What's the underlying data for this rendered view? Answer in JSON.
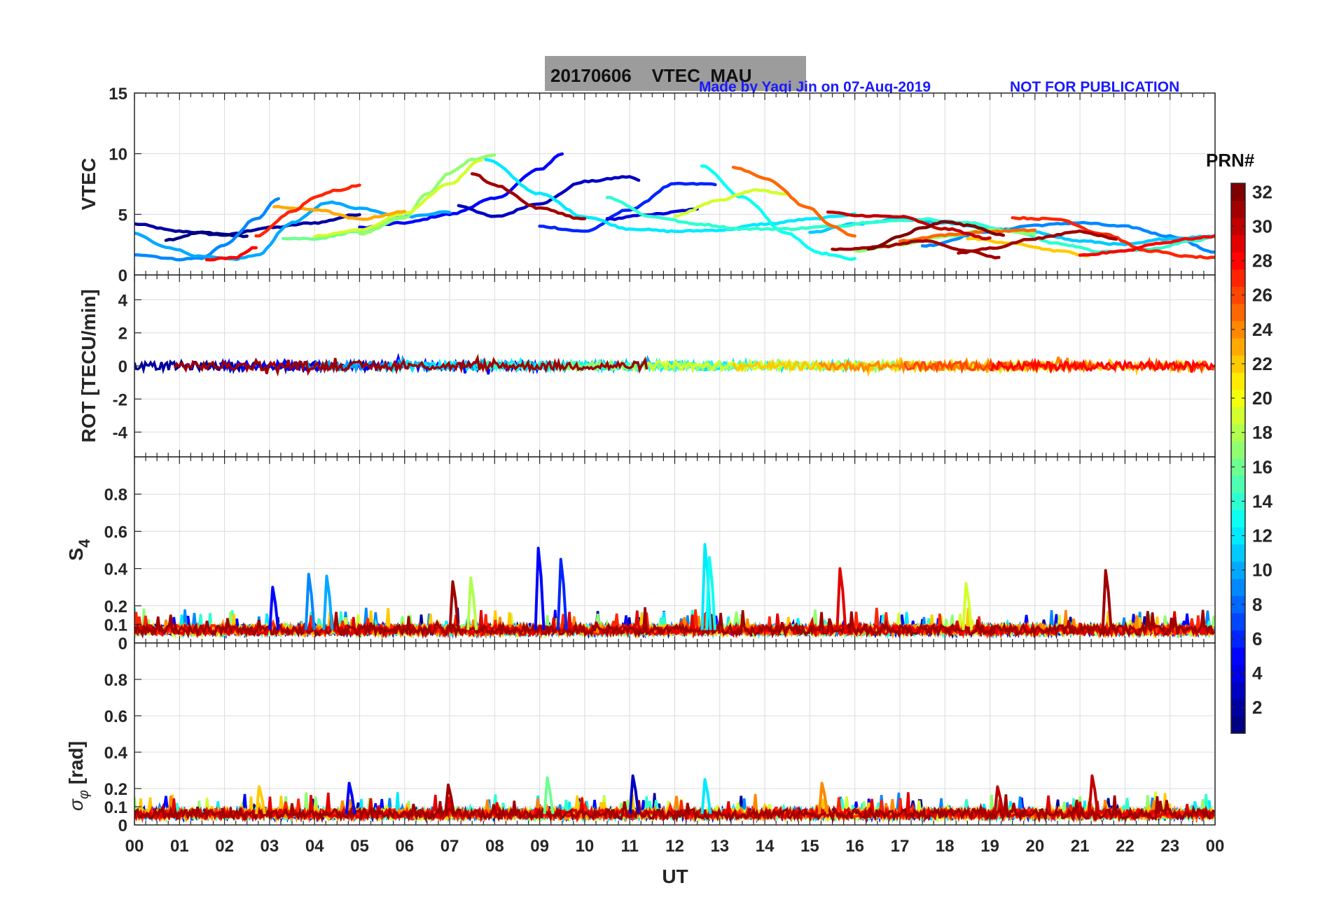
{
  "header": {
    "title": "20170606    VTEC  MAU",
    "credit": "Made by Yaqi Jin on 07-Aug-2019",
    "notice": "NOT FOR PUBLICATION"
  },
  "colorbar": {
    "title": "PRN#",
    "range": [
      1,
      32
    ],
    "ticks": [
      "2",
      "4",
      "6",
      "8",
      "10",
      "12",
      "14",
      "16",
      "18",
      "20",
      "22",
      "24",
      "26",
      "28",
      "30",
      "32"
    ],
    "colormap": "jet"
  },
  "chart_data": {
    "type": "line",
    "xlabel": "UT",
    "x_ticks": [
      "00",
      "01",
      "02",
      "03",
      "04",
      "05",
      "06",
      "07",
      "08",
      "09",
      "10",
      "11",
      "12",
      "13",
      "14",
      "15",
      "16",
      "17",
      "18",
      "19",
      "20",
      "21",
      "22",
      "23",
      "00"
    ],
    "xlim": [
      0,
      24
    ],
    "grid": true,
    "panels": [
      {
        "name": "VTEC",
        "ylabel": "VTEC",
        "ylim": [
          0,
          15
        ],
        "yticks": [
          "0",
          "5",
          "10",
          "15"
        ],
        "series": [
          {
            "prn": 2,
            "x": [
              0.0,
              1,
              2,
              3,
              4,
              5
            ],
            "values": [
              4.2,
              3.6,
              3.3,
              3.9,
              4.3,
              5.0
            ]
          },
          {
            "prn": 1,
            "x": [
              0.7,
              1.5,
              2.5
            ],
            "values": [
              2.9,
              3.5,
              3.2
            ]
          },
          {
            "prn": 5,
            "x": [
              5,
              6,
              7,
              8,
              9,
              9.5
            ],
            "values": [
              3.9,
              4.3,
              5.0,
              6.3,
              8.7,
              10.0
            ]
          },
          {
            "prn": 3,
            "x": [
              7.2,
              8,
              9,
              10,
              11,
              11.2
            ],
            "values": [
              5.7,
              4.8,
              5.9,
              7.7,
              8.1,
              7.8
            ]
          },
          {
            "prn": 6,
            "x": [
              9,
              10,
              11,
              12,
              12.9
            ],
            "values": [
              4.0,
              3.6,
              5.4,
              7.5,
              7.5
            ]
          },
          {
            "prn": 4,
            "x": [
              10.5,
              11.5,
              12.5
            ],
            "values": [
              4.6,
              5.0,
              5.4
            ]
          },
          {
            "prn": 9,
            "x": [
              0.0,
              1,
              1.5,
              2,
              2.7,
              3.2
            ],
            "values": [
              1.7,
              1.3,
              1.4,
              2.5,
              4.6,
              6.3
            ]
          },
          {
            "prn": 10,
            "x": [
              0.0,
              0.7,
              1.5,
              2.2,
              2.7,
              3.5,
              4.3,
              5,
              6,
              7
            ],
            "values": [
              3.4,
              2.3,
              1.5,
              1.3,
              1.6,
              4.3,
              6.0,
              5.5,
              4.8,
              5.2
            ]
          },
          {
            "prn": 9,
            "x": [
              17.5,
              19,
              20,
              21,
              22,
              23,
              24
            ],
            "values": [
              2.4,
              3.6,
              4.1,
              4.3,
              4.0,
              3.2,
              1.9
            ]
          },
          {
            "prn": 12,
            "x": [
              7.8,
              9,
              10,
              11,
              12,
              13,
              14,
              15,
              16
            ],
            "values": [
              9.5,
              6.7,
              4.8,
              3.8,
              3.6,
              3.7,
              4.2,
              4.6,
              5.0
            ]
          },
          {
            "prn": 13,
            "x": [
              12.6,
              13.5,
              14.5,
              15.2,
              16
            ],
            "values": [
              9.0,
              6.4,
              3.4,
              1.8,
              1.3
            ]
          },
          {
            "prn": 11,
            "x": [
              15,
              16,
              17,
              18,
              19,
              20,
              21,
              22,
              23,
              24
            ],
            "values": [
              3.5,
              4.2,
              4.6,
              4.3,
              3.8,
              3.5,
              2.8,
              2.5,
              3.0,
              3.2
            ]
          },
          {
            "prn": 14,
            "x": [
              10.5,
              11.5,
              12.5,
              13.5,
              14.5,
              15.5,
              16.5,
              17.5,
              18.5,
              19.5,
              20.5,
              21.5,
              22.5,
              23.5,
              24
            ],
            "values": [
              6.4,
              4.8,
              4.2,
              3.8,
              3.8,
              4.0,
              4.4,
              4.6,
              4.3,
              3.6,
              2.6,
              1.9,
              2.1,
              2.8,
              3.2
            ]
          },
          {
            "prn": 16,
            "x": [
              3.3,
              4,
              5,
              6
            ],
            "values": [
              3.0,
              3.0,
              3.6,
              4.8
            ]
          },
          {
            "prn": 17,
            "x": [
              5,
              6,
              6.5,
              7,
              7.5,
              8
            ],
            "values": [
              3.4,
              4.7,
              6.7,
              8.4,
              9.5,
              9.9
            ]
          },
          {
            "prn": 17,
            "x": [
              16,
              17,
              18,
              19,
              20
            ],
            "values": [
              2.0,
              2.5,
              3.2,
              3.7,
              3.4
            ]
          },
          {
            "prn": 19,
            "x": [
              4,
              5,
              6,
              7,
              7.7
            ],
            "values": [
              3.2,
              3.7,
              5.1,
              7.5,
              9.5
            ]
          },
          {
            "prn": 19,
            "x": [
              12,
              13,
              13.8,
              14.5
            ],
            "values": [
              4.9,
              6.2,
              7.0,
              6.7
            ]
          },
          {
            "prn": 22,
            "x": [
              18.5,
              19.5,
              20.5,
              21.2
            ],
            "values": [
              3.0,
              2.6,
              2.0,
              1.6
            ]
          },
          {
            "prn": 23,
            "x": [
              3.1,
              4,
              5,
              6
            ],
            "values": [
              5.6,
              5.4,
              4.6,
              5.2
            ]
          },
          {
            "prn": 25,
            "x": [
              13.3,
              14,
              15,
              15.5,
              16
            ],
            "values": [
              8.9,
              8.0,
              5.5,
              4.0,
              3.2
            ]
          },
          {
            "prn": 25,
            "x": [
              17,
              18,
              19,
              20
            ],
            "values": [
              2.8,
              3.3,
              3.6,
              3.7
            ]
          },
          {
            "prn": 27,
            "x": [
              2.7,
              3.5,
              4,
              4.5,
              5
            ],
            "values": [
              3.2,
              5.2,
              6.4,
              7.0,
              7.4
            ]
          },
          {
            "prn": 28,
            "x": [
              1.6,
              2.2,
              2.7
            ],
            "values": [
              1.3,
              1.4,
              2.3
            ]
          },
          {
            "prn": 27,
            "x": [
              19.5,
              20.5,
              21.5,
              22.5,
              23.5,
              24
            ],
            "values": [
              4.7,
              4.6,
              3.4,
              2.0,
              1.5,
              1.4
            ]
          },
          {
            "prn": 28,
            "x": [
              21,
              22,
              22.7,
              23.5,
              24
            ],
            "values": [
              1.6,
              2.0,
              2.6,
              3.0,
              3.2
            ]
          },
          {
            "prn": 31,
            "x": [
              7.5,
              8,
              9,
              10
            ],
            "values": [
              8.4,
              7.4,
              5.5,
              4.6
            ]
          },
          {
            "prn": 30,
            "x": [
              15.4,
              16,
              17,
              18,
              19
            ],
            "values": [
              5.2,
              4.9,
              4.8,
              3.8,
              3.0
            ]
          },
          {
            "prn": 31,
            "x": [
              15.5,
              16.5,
              17.5,
              18.5,
              19.2
            ],
            "values": [
              2.1,
              2.3,
              2.8,
              2.0,
              1.4
            ]
          },
          {
            "prn": 32,
            "x": [
              16.3,
              17,
              17.5,
              18,
              18.5,
              19.3
            ],
            "values": [
              2.1,
              3.2,
              3.9,
              4.4,
              4.1,
              3.3
            ]
          },
          {
            "prn": 31,
            "x": [
              18.3,
              19,
              20,
              21,
              21.8
            ],
            "values": [
              1.8,
              2.2,
              3.0,
              3.6,
              3.0
            ]
          }
        ]
      },
      {
        "name": "ROT",
        "ylabel": "ROT [TECU/min]",
        "ylim": [
          -5.5,
          5.5
        ],
        "yticks": [
          "-4",
          "-2",
          "0",
          "2",
          "4"
        ],
        "note": "all satellites scattered within approximately ±0.5 TECU/min around 0"
      },
      {
        "name": "S4",
        "ylabel": "S4",
        "ylim": [
          0,
          1.0
        ],
        "yticks": [
          "0",
          "0.1",
          "0.2",
          "0.4",
          "0.6",
          "0.8"
        ],
        "baseline": 0.07,
        "spikes": [
          {
            "x": 9.0,
            "value": 0.51,
            "prn": 5
          },
          {
            "x": 9.5,
            "value": 0.45,
            "prn": 6
          },
          {
            "x": 12.7,
            "value": 0.53,
            "prn": 12
          },
          {
            "x": 12.8,
            "value": 0.46,
            "prn": 13
          },
          {
            "x": 15.7,
            "value": 0.4,
            "prn": 29
          },
          {
            "x": 21.6,
            "value": 0.39,
            "prn": 31
          },
          {
            "x": 3.9,
            "value": 0.37,
            "prn": 9
          },
          {
            "x": 4.3,
            "value": 0.36,
            "prn": 10
          },
          {
            "x": 7.5,
            "value": 0.35,
            "prn": 18
          },
          {
            "x": 7.1,
            "value": 0.33,
            "prn": 31
          },
          {
            "x": 18.5,
            "value": 0.32,
            "prn": 19
          },
          {
            "x": 3.1,
            "value": 0.3,
            "prn": 5
          }
        ]
      },
      {
        "name": "sigma_phi",
        "ylabel": "σ_φ [rad]",
        "ylim": [
          0,
          1.0
        ],
        "yticks": [
          "0",
          "0.1",
          "0.2",
          "0.4",
          "0.6",
          "0.8"
        ],
        "baseline": 0.06,
        "spikes": [
          {
            "x": 11.1,
            "value": 0.27,
            "prn": 3
          },
          {
            "x": 21.3,
            "value": 0.27,
            "prn": 30
          },
          {
            "x": 9.2,
            "value": 0.26,
            "prn": 16
          },
          {
            "x": 12.7,
            "value": 0.25,
            "prn": 12
          },
          {
            "x": 15.3,
            "value": 0.23,
            "prn": 24
          },
          {
            "x": 4.8,
            "value": 0.23,
            "prn": 5
          },
          {
            "x": 7.0,
            "value": 0.22,
            "prn": 31
          },
          {
            "x": 19.2,
            "value": 0.21,
            "prn": 30
          },
          {
            "x": 2.8,
            "value": 0.21,
            "prn": 22
          }
        ]
      }
    ]
  }
}
